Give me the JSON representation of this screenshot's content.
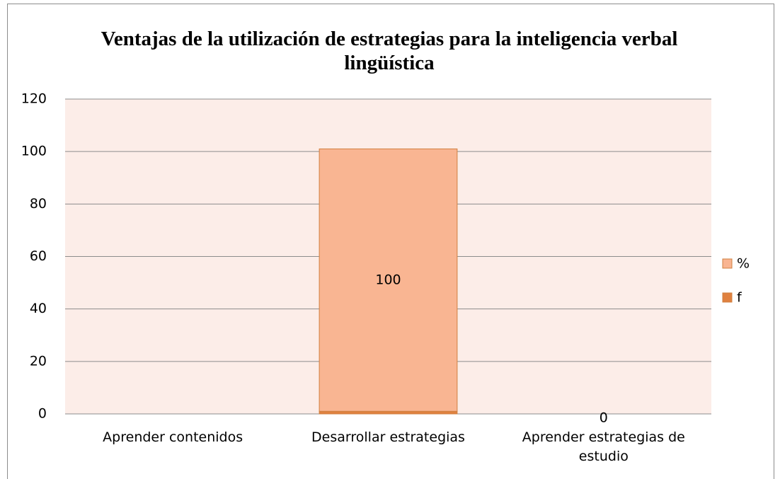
{
  "chart_data": {
    "type": "stacked_bar",
    "title": "Ventajas de la utilización de estrategias para la inteligencia verbal lingüística",
    "categories": [
      "Aprender contenidos",
      "Desarrollar estrategias",
      "Aprender estrategias de estudio"
    ],
    "series": [
      {
        "name": "f",
        "color": "#e0813f",
        "values": [
          null,
          1,
          null
        ]
      },
      {
        "name": "%",
        "color": "#f9b592",
        "values": [
          null,
          100,
          0
        ]
      }
    ],
    "ylim": [
      0,
      120
    ],
    "yticks": [
      0,
      20,
      40,
      60,
      80,
      100,
      120
    ],
    "grid": true,
    "legend": "right"
  }
}
